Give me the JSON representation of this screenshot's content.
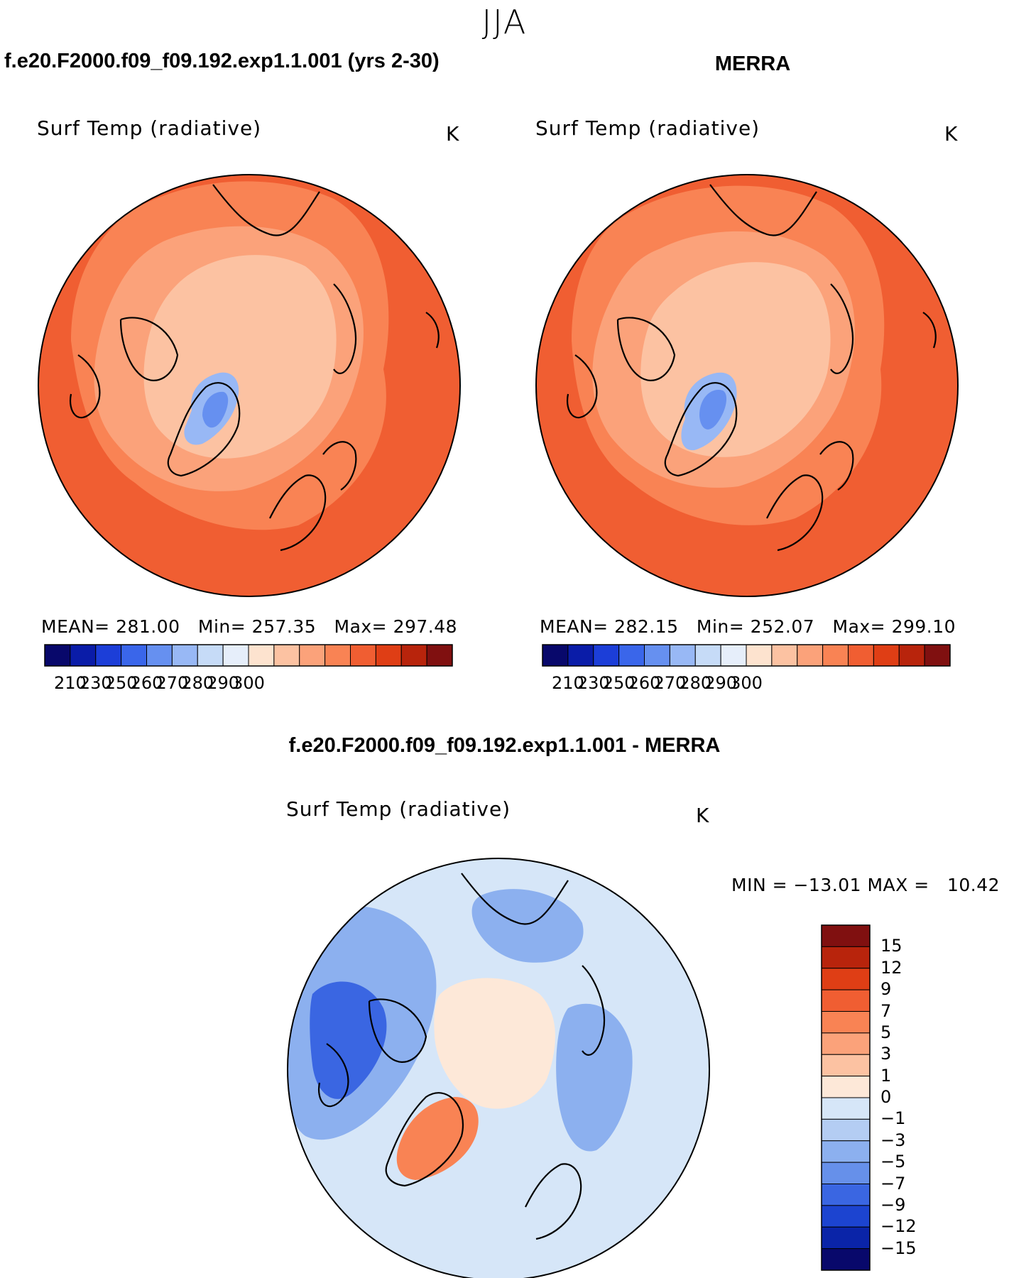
{
  "season": "JJA",
  "panels": [
    {
      "header": "f.e20.F2000.f09_f09.192.exp1.1.001 (yrs 2-30)",
      "variable": "Surf Temp (radiative)",
      "units": "K",
      "stats": {
        "mean_label": "MEAN=",
        "mean": "281.00",
        "min_label": "Min=",
        "min": "257.35",
        "max_label": "Max=",
        "max": "297.48"
      }
    },
    {
      "header": "MERRA",
      "variable": "Surf Temp (radiative)",
      "units": "K",
      "stats": {
        "mean_label": "MEAN=",
        "mean": "282.15",
        "min_label": "Min=",
        "min": "252.07",
        "max_label": "Max=",
        "max": "299.10"
      }
    }
  ],
  "diff_panel": {
    "header": "f.e20.F2000.f09_f09.192.exp1.1.001 - MERRA",
    "variable": "Surf Temp (radiative)",
    "units": "K",
    "minmax_text": "MIN = −13.01 MAX =   10.42"
  },
  "abs_colorbar": {
    "colors": [
      "#08086b",
      "#0a1ca8",
      "#1c3ed8",
      "#3a66ea",
      "#6690f0",
      "#98b8f5",
      "#c6dbf7",
      "#e6eefa",
      "#fde3cf",
      "#fcc2a2",
      "#fba27a",
      "#f98354",
      "#f05e32",
      "#df3e15",
      "#b8240c",
      "#801010"
    ],
    "labels": [
      "210",
      "230",
      "250",
      "260",
      "270",
      "280",
      "290",
      "300"
    ]
  },
  "diff_colorbar": {
    "colors_top_to_bottom": [
      "#801010",
      "#b8240c",
      "#df3e15",
      "#f05e32",
      "#f98354",
      "#fba27a",
      "#fcc2a2",
      "#fde8d8",
      "#d6e6f8",
      "#b4cdf3",
      "#8cb0ef",
      "#6690ea",
      "#3a66e2",
      "#1c44d0",
      "#0a24a8",
      "#08086b"
    ],
    "labels": [
      "15",
      "12",
      "9",
      "7",
      "5",
      "3",
      "1",
      "0",
      "−1",
      "−3",
      "−5",
      "−7",
      "−9",
      "−12",
      "−15"
    ]
  },
  "map_colors": {
    "model_levels_outer_to_inner": [
      "#f05e32",
      "#f98354",
      "#fba27a",
      "#fcc2a2",
      "#98b8f5",
      "#6690f0"
    ],
    "diff_field": [
      "#d6e6f8",
      "#8cb0ef",
      "#3a66e2",
      "#fde8d8",
      "#f98354"
    ],
    "coastline": "#000000"
  }
}
